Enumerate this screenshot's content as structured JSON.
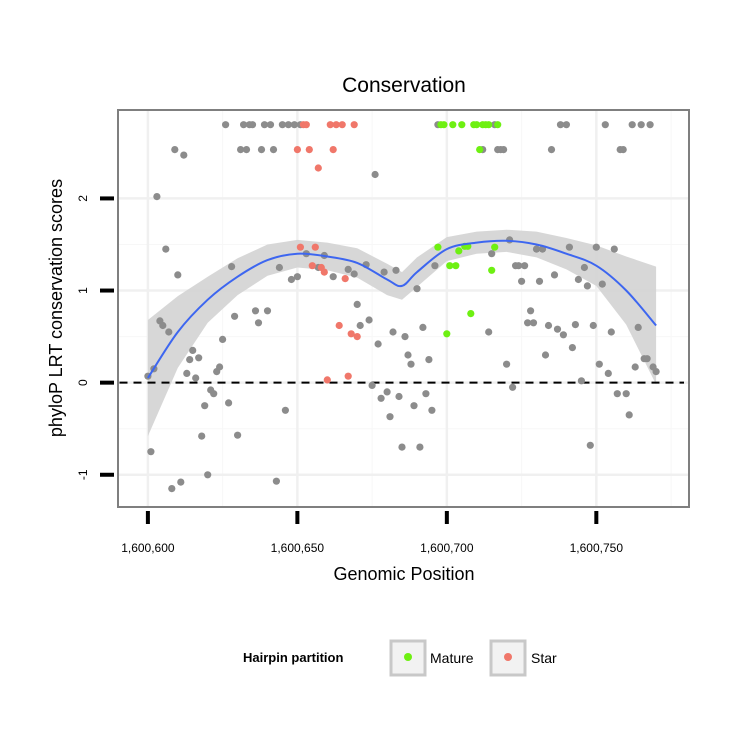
{
  "chart_data": {
    "type": "scatter",
    "title": "Conservation",
    "xlabel": "Genomic Position",
    "ylabel": "phyloP LRT conservation scores",
    "xlim": [
      1600590,
      1600781
    ],
    "ylim": [
      -1.35,
      2.96
    ],
    "x_ticks": [
      {
        "value": 1600600,
        "label": "1,600,600"
      },
      {
        "value": 1600650,
        "label": "1,600,650"
      },
      {
        "value": 1600700,
        "label": "1,600,700"
      },
      {
        "value": 1600750,
        "label": "1,600,750"
      }
    ],
    "y_ticks": [
      {
        "value": -1,
        "label": "-1"
      },
      {
        "value": 0,
        "label": "0"
      },
      {
        "value": 1,
        "label": "1"
      },
      {
        "value": 2,
        "label": "2"
      }
    ],
    "grid": true,
    "reference_line": {
      "y": 0,
      "style": "dashed"
    },
    "legend": {
      "title": "Hairpin partition",
      "placement": "bottom",
      "entries": [
        {
          "label": "Mature",
          "color": "#6ef012"
        },
        {
          "label": "Star",
          "color": "#f0776a"
        }
      ]
    },
    "colors": {
      "other": "#8c8c8c",
      "mature": "#6ef012",
      "star": "#f0776a",
      "smooth": "#3d66f0",
      "band": "#d3d3d3"
    },
    "series": [
      {
        "group": "other",
        "points": [
          [
            1600600,
            0.07
          ],
          [
            1600601,
            -0.75
          ],
          [
            1600602,
            0.15
          ],
          [
            1600603,
            2.02
          ],
          [
            1600604,
            0.67
          ],
          [
            1600605,
            0.62
          ],
          [
            1600606,
            1.45
          ],
          [
            1600607,
            0.55
          ],
          [
            1600608,
            -1.15
          ],
          [
            1600609,
            2.53
          ],
          [
            1600610,
            1.17
          ],
          [
            1600611,
            -1.08
          ],
          [
            1600612,
            2.47
          ],
          [
            1600613,
            0.1
          ],
          [
            1600614,
            0.25
          ],
          [
            1600615,
            0.35
          ],
          [
            1600616,
            0.05
          ],
          [
            1600617,
            0.27
          ],
          [
            1600618,
            -0.58
          ],
          [
            1600619,
            -0.25
          ],
          [
            1600620,
            -1.0
          ],
          [
            1600621,
            -0.08
          ],
          [
            1600622,
            -0.12
          ],
          [
            1600623,
            0.12
          ],
          [
            1600624,
            0.17
          ],
          [
            1600625,
            0.47
          ],
          [
            1600626,
            2.8
          ],
          [
            1600627,
            -0.22
          ],
          [
            1600628,
            1.26
          ],
          [
            1600629,
            0.72
          ],
          [
            1600630,
            -0.57
          ],
          [
            1600631,
            2.53
          ],
          [
            1600632,
            2.8
          ],
          [
            1600633,
            2.53
          ],
          [
            1600634,
            2.8
          ],
          [
            1600635,
            2.8
          ],
          [
            1600636,
            0.78
          ],
          [
            1600637,
            0.65
          ],
          [
            1600638,
            2.53
          ],
          [
            1600639,
            2.8
          ],
          [
            1600640,
            0.78
          ],
          [
            1600641,
            2.8
          ],
          [
            1600642,
            2.53
          ],
          [
            1600643,
            -1.07
          ],
          [
            1600644,
            1.25
          ],
          [
            1600645,
            2.8
          ],
          [
            1600646,
            -0.3
          ],
          [
            1600647,
            2.8
          ],
          [
            1600648,
            1.12
          ],
          [
            1600649,
            2.8
          ],
          [
            1600650,
            1.15
          ],
          [
            1600651,
            2.8
          ],
          [
            1600653,
            1.4
          ],
          [
            1600657,
            1.25
          ],
          [
            1600659,
            1.38
          ],
          [
            1600662,
            1.15
          ],
          [
            1600667,
            1.23
          ],
          [
            1600669,
            1.18
          ],
          [
            1600670,
            0.85
          ],
          [
            1600671,
            0.62
          ],
          [
            1600673,
            1.28
          ],
          [
            1600674,
            0.68
          ],
          [
            1600675,
            -0.03
          ],
          [
            1600676,
            2.26
          ],
          [
            1600677,
            0.42
          ],
          [
            1600678,
            -0.17
          ],
          [
            1600679,
            1.2
          ],
          [
            1600680,
            -0.1
          ],
          [
            1600681,
            -0.37
          ],
          [
            1600682,
            0.55
          ],
          [
            1600683,
            1.22
          ],
          [
            1600684,
            -0.15
          ],
          [
            1600685,
            -0.7
          ],
          [
            1600686,
            0.5
          ],
          [
            1600687,
            0.3
          ],
          [
            1600688,
            0.2
          ],
          [
            1600689,
            -0.25
          ],
          [
            1600690,
            1.02
          ],
          [
            1600691,
            -0.7
          ],
          [
            1600692,
            0.6
          ],
          [
            1600693,
            -0.12
          ],
          [
            1600694,
            0.25
          ],
          [
            1600695,
            -0.3
          ],
          [
            1600696,
            1.27
          ],
          [
            1600697,
            2.8
          ],
          [
            1600712,
            2.53
          ],
          [
            1600714,
            0.55
          ],
          [
            1600715,
            1.4
          ],
          [
            1600716,
            2.8
          ],
          [
            1600717,
            2.53
          ],
          [
            1600718,
            2.53
          ],
          [
            1600719,
            2.53
          ],
          [
            1600720,
            0.2
          ],
          [
            1600721,
            1.55
          ],
          [
            1600722,
            -0.05
          ],
          [
            1600723,
            1.27
          ],
          [
            1600724,
            1.27
          ],
          [
            1600725,
            1.1
          ],
          [
            1600726,
            1.27
          ],
          [
            1600727,
            0.65
          ],
          [
            1600728,
            0.78
          ],
          [
            1600729,
            0.65
          ],
          [
            1600730,
            1.45
          ],
          [
            1600731,
            1.1
          ],
          [
            1600732,
            1.45
          ],
          [
            1600733,
            0.3
          ],
          [
            1600734,
            0.62
          ],
          [
            1600735,
            2.53
          ],
          [
            1600736,
            1.17
          ],
          [
            1600737,
            0.58
          ],
          [
            1600738,
            2.8
          ],
          [
            1600739,
            0.52
          ],
          [
            1600740,
            2.8
          ],
          [
            1600741,
            1.47
          ],
          [
            1600742,
            0.38
          ],
          [
            1600743,
            0.63
          ],
          [
            1600744,
            1.12
          ],
          [
            1600745,
            0.02
          ],
          [
            1600746,
            1.25
          ],
          [
            1600747,
            1.05
          ],
          [
            1600748,
            -0.68
          ],
          [
            1600749,
            0.62
          ],
          [
            1600750,
            1.47
          ],
          [
            1600751,
            0.2
          ],
          [
            1600752,
            1.07
          ],
          [
            1600753,
            2.8
          ],
          [
            1600754,
            0.1
          ],
          [
            1600755,
            0.55
          ],
          [
            1600756,
            1.45
          ],
          [
            1600757,
            -0.12
          ],
          [
            1600758,
            2.53
          ],
          [
            1600759,
            2.53
          ],
          [
            1600760,
            -0.12
          ],
          [
            1600761,
            -0.35
          ],
          [
            1600762,
            2.8
          ],
          [
            1600763,
            0.17
          ],
          [
            1600764,
            0.6
          ],
          [
            1600765,
            2.8
          ],
          [
            1600766,
            0.26
          ],
          [
            1600767,
            0.26
          ],
          [
            1600768,
            2.8
          ],
          [
            1600769,
            0.17
          ],
          [
            1600770,
            0.12
          ]
        ]
      },
      {
        "group": "mature",
        "name": "Mature",
        "points": [
          [
            1600697,
            1.47
          ],
          [
            1600698,
            2.8
          ],
          [
            1600699,
            2.8
          ],
          [
            1600700,
            0.53
          ],
          [
            1600701,
            1.27
          ],
          [
            1600702,
            2.8
          ],
          [
            1600703,
            1.27
          ],
          [
            1600704,
            1.43
          ],
          [
            1600705,
            2.8
          ],
          [
            1600706,
            1.48
          ],
          [
            1600707,
            1.48
          ],
          [
            1600708,
            0.75
          ],
          [
            1600709,
            2.8
          ],
          [
            1600710,
            2.8
          ],
          [
            1600711,
            2.53
          ],
          [
            1600712,
            2.8
          ],
          [
            1600713,
            2.8
          ],
          [
            1600714,
            2.8
          ],
          [
            1600715,
            1.22
          ],
          [
            1600716,
            1.47
          ],
          [
            1600717,
            2.8
          ]
        ]
      },
      {
        "group": "star",
        "name": "Star",
        "points": [
          [
            1600650,
            2.53
          ],
          [
            1600651,
            1.47
          ],
          [
            1600652,
            2.8
          ],
          [
            1600653,
            2.8
          ],
          [
            1600654,
            2.53
          ],
          [
            1600655,
            1.27
          ],
          [
            1600656,
            1.47
          ],
          [
            1600657,
            2.33
          ],
          [
            1600658,
            1.25
          ],
          [
            1600659,
            1.2
          ],
          [
            1600660,
            0.03
          ],
          [
            1600661,
            2.8
          ],
          [
            1600662,
            2.53
          ],
          [
            1600663,
            2.8
          ],
          [
            1600664,
            0.62
          ],
          [
            1600665,
            2.8
          ],
          [
            1600666,
            1.13
          ],
          [
            1600667,
            0.07
          ],
          [
            1600668,
            0.53
          ],
          [
            1600669,
            2.8
          ],
          [
            1600670,
            0.5
          ]
        ]
      }
    ],
    "smooth": {
      "x": [
        1600600,
        1600610,
        1600620,
        1600630,
        1600640,
        1600650,
        1600660,
        1600670,
        1600680,
        1600685,
        1600690,
        1600700,
        1600710,
        1600720,
        1600730,
        1600740,
        1600750,
        1600760,
        1600770
      ],
      "y": [
        0.05,
        0.55,
        0.9,
        1.15,
        1.33,
        1.4,
        1.37,
        1.3,
        1.12,
        1.05,
        1.2,
        1.45,
        1.52,
        1.54,
        1.5,
        1.4,
        1.27,
        1.0,
        0.62
      ],
      "lower": [
        -0.58,
        0.16,
        0.65,
        0.95,
        1.16,
        1.25,
        1.22,
        1.14,
        0.95,
        0.9,
        1.04,
        1.32,
        1.4,
        1.42,
        1.36,
        1.23,
        1.05,
        0.63,
        -0.02
      ],
      "upper": [
        0.68,
        0.94,
        1.15,
        1.35,
        1.5,
        1.55,
        1.52,
        1.46,
        1.29,
        1.2,
        1.36,
        1.58,
        1.64,
        1.66,
        1.64,
        1.57,
        1.49,
        1.37,
        1.26
      ]
    }
  }
}
